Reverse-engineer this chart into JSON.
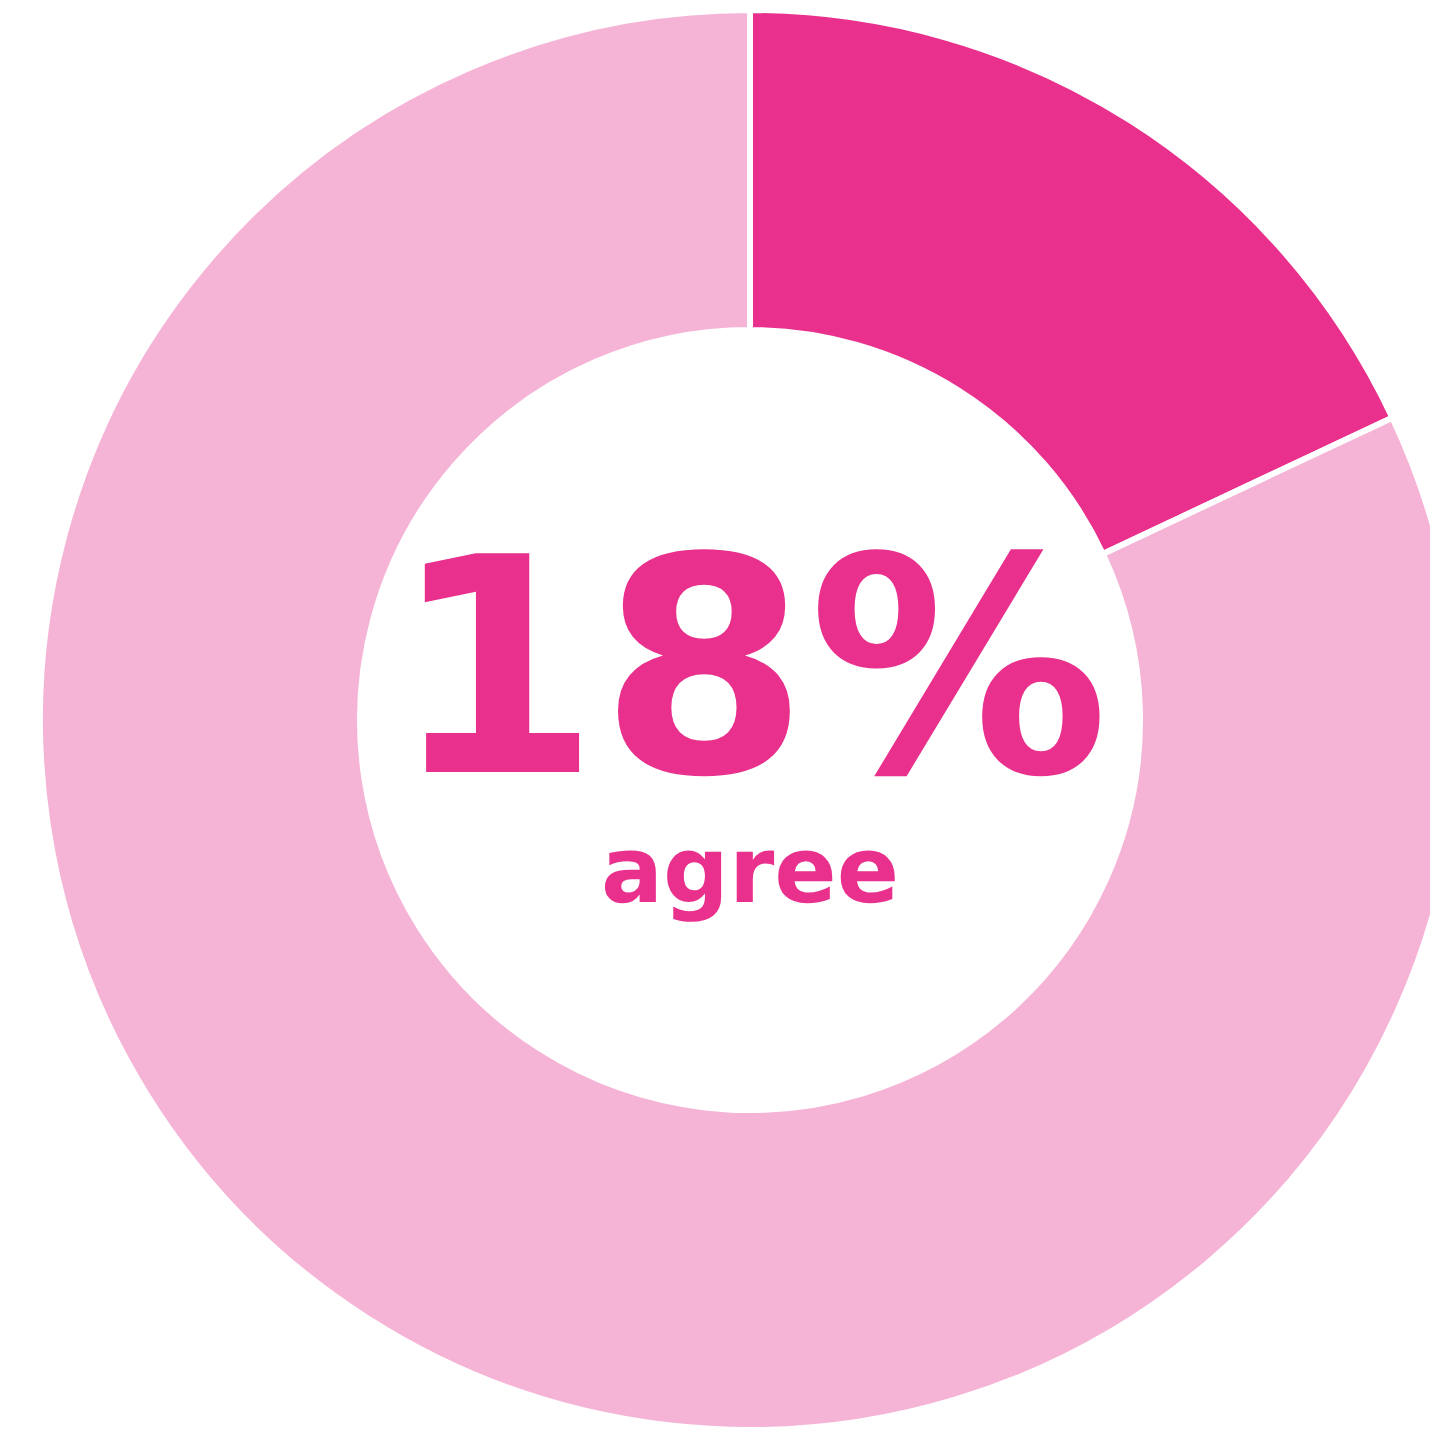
{
  "chart_data": {
    "type": "donut",
    "categories": [
      "agree",
      null
    ],
    "values": [
      18,
      82
    ],
    "colors": [
      "#e8308c",
      "#f5b4d6"
    ],
    "value_labels": [
      "18%",
      null
    ],
    "legend": false
  }
}
